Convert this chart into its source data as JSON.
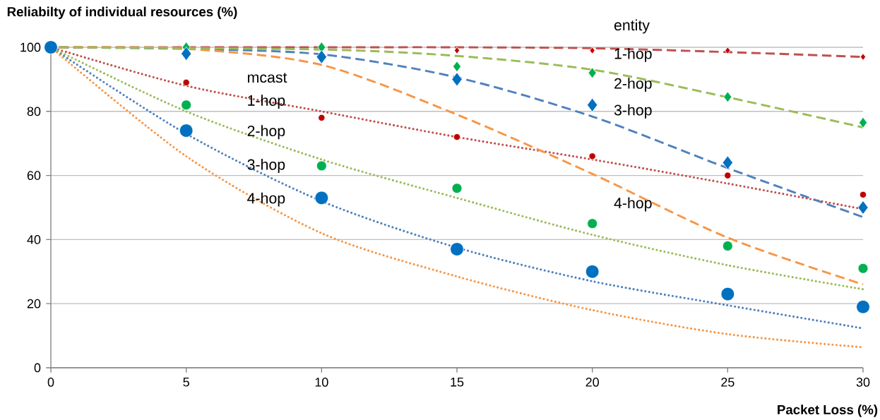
{
  "chart_data": {
    "type": "line",
    "ylabel": "Reliabilty of individual resources (%)",
    "xlabel": "Packet Loss (%)",
    "x": [
      0,
      5,
      10,
      15,
      20,
      25,
      30
    ],
    "xlim": [
      0,
      30
    ],
    "xticks": [
      0,
      5,
      10,
      15,
      20,
      25,
      30
    ],
    "ylim": [
      0,
      100
    ],
    "yticks": [
      0,
      20,
      40,
      60,
      80,
      100
    ],
    "grid": "y",
    "annotations": [
      "mcast",
      "1-hop",
      "2-hop",
      "3-hop",
      "4-hop",
      "entity",
      "1-hop",
      "2-hop",
      "3-hop",
      "4-hop"
    ],
    "series": [
      {
        "color": "#c0504d",
        "line_style": "dotted",
        "marker": "none",
        "values": [
          100,
          88,
          80,
          72,
          65,
          57.5,
          49.5
        ]
      },
      {
        "color": "#9bbb59",
        "line_style": "dotted",
        "marker": "none",
        "values": [
          100,
          80,
          65,
          53,
          41.5,
          32,
          24.5
        ]
      },
      {
        "color": "#4f81bd",
        "line_style": "dotted",
        "marker": "none",
        "values": [
          100,
          73,
          52,
          37.5,
          27,
          19.5,
          12.3
        ]
      },
      {
        "color": "#f79646",
        "line_style": "dotted",
        "marker": "none",
        "values": [
          100,
          66,
          42,
          28.5,
          18,
          10.5,
          6.4
        ]
      },
      {
        "color": "#c0504d",
        "line_style": "dashed",
        "marker": "none",
        "x": [
          0,
          10,
          15,
          20,
          25,
          30
        ],
        "values": [
          100,
          100,
          100,
          99.7,
          98.5,
          97
        ]
      },
      {
        "color": "#4f81bd",
        "line_style": "dashed",
        "marker": "none",
        "values": [
          100,
          99.5,
          97.8,
          90.6,
          78.4,
          62.3,
          47
        ]
      },
      {
        "color": "#f79646",
        "line_style": "dashed",
        "marker": "none",
        "values": [
          100,
          99.5,
          94.5,
          79,
          60.5,
          40.6,
          26
        ]
      },
      {
        "color": "#9bbb59",
        "line_style": "dashed",
        "marker": "none",
        "x": [
          0,
          10,
          15,
          20,
          25,
          30
        ],
        "values": [
          100,
          99.3,
          97.3,
          93,
          84.4,
          75
        ]
      },
      {
        "type": "scatter",
        "color": "#c00000",
        "marker": "circle",
        "values": [
          null,
          89,
          78,
          72,
          66,
          60,
          54
        ]
      },
      {
        "type": "scatter",
        "color": "#00b050",
        "marker": "circle",
        "values": [
          null,
          82,
          63,
          56,
          45,
          38,
          31
        ]
      },
      {
        "type": "scatter",
        "color": "#0070c0",
        "marker": "circle",
        "values": [
          100,
          74,
          53,
          37,
          30,
          23,
          19
        ]
      },
      {
        "type": "scatter",
        "color": "#c00000",
        "marker": "diamond",
        "values": [
          null,
          null,
          null,
          99,
          99,
          99,
          97
        ]
      },
      {
        "type": "scatter",
        "color": "#00b050",
        "marker": "diamond",
        "values": [
          null,
          100,
          100,
          94,
          92,
          84.5,
          76.5
        ]
      },
      {
        "type": "scatter",
        "color": "#0070c0",
        "marker": "diamond",
        "values": [
          null,
          98,
          97,
          90,
          82,
          64,
          50
        ]
      }
    ]
  }
}
